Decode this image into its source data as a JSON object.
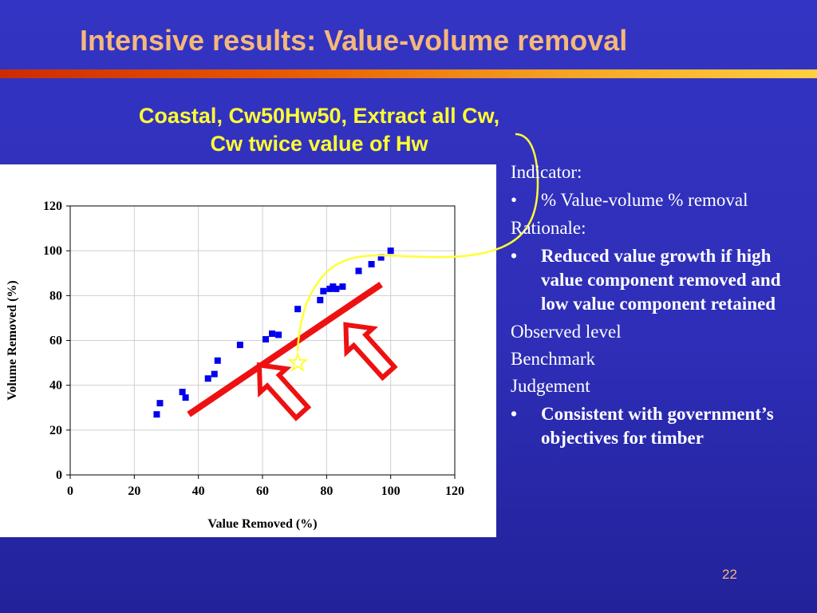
{
  "slide": {
    "title": "Intensive results: Value-volume removal",
    "page_number": "22"
  },
  "chart_data": {
    "type": "scatter",
    "title": "Coastal, Cw50Hw50, Extract all Cw, Cw twice value of Hw",
    "xlabel": "Value Removed (%)",
    "ylabel": "Volume Removed (%)",
    "xlim": [
      0,
      120
    ],
    "ylim": [
      0,
      120
    ],
    "x_ticks": [
      0,
      20,
      40,
      60,
      80,
      100,
      120
    ],
    "y_ticks": [
      0,
      20,
      40,
      60,
      80,
      100,
      120
    ],
    "grid": true,
    "series": [
      {
        "color": "#0000ee",
        "marker": "square",
        "points": [
          [
            27,
            27
          ],
          [
            28,
            32
          ],
          [
            35,
            37
          ],
          [
            36,
            34.5
          ],
          [
            43,
            43
          ],
          [
            45,
            45
          ],
          [
            46,
            51
          ],
          [
            53,
            58
          ],
          [
            61,
            60.5
          ],
          [
            63,
            63
          ],
          [
            65,
            62.5
          ],
          [
            71,
            74
          ],
          [
            78,
            78
          ],
          [
            79,
            82
          ],
          [
            81,
            83
          ],
          [
            82,
            84
          ],
          [
            83,
            83
          ],
          [
            85,
            84
          ],
          [
            90,
            91
          ],
          [
            94,
            94
          ],
          [
            97,
            97
          ],
          [
            100,
            100
          ]
        ]
      }
    ],
    "annotations": {
      "trend_line": {
        "from": [
          37,
          27
        ],
        "to": [
          97,
          85
        ],
        "color": "#ee1111"
      },
      "star_point": {
        "x": 71,
        "y": 50,
        "color": "#ffff33"
      },
      "arrows": [
        {
          "tip": [
            59,
            49
          ],
          "color": "#ee1111"
        },
        {
          "tip": [
            86,
            67
          ],
          "color": "#ee1111"
        }
      ]
    }
  },
  "info": {
    "indicator_heading": "Indicator:",
    "indicator_items": [
      "% Value-volume % removal"
    ],
    "rationale_heading": "Rationale:",
    "rationale_items": [
      "Reduced value growth if high value component removed and low value component retained"
    ],
    "observed_heading": "Observed level",
    "benchmark_heading": "Benchmark",
    "judgement_heading": "Judgement",
    "judgement_items": [
      "Consistent with government’s objectives for timber"
    ],
    "bullet_symbol": "•"
  }
}
